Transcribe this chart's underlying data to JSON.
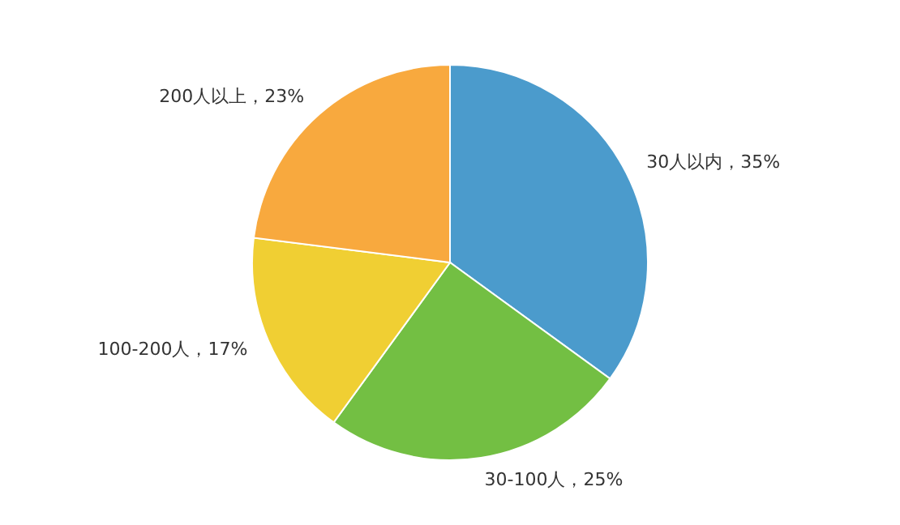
{
  "chart_data": {
    "type": "pie",
    "categories": [
      "30人以内",
      "30-100人",
      "100-200人",
      "200人以上"
    ],
    "values": [
      35,
      25,
      17,
      23
    ],
    "colors": [
      "#4b9bcc",
      "#73bf43",
      "#f0cf33",
      "#f8a93e"
    ],
    "value_labels": [
      "35%",
      "25%",
      "17%",
      "23%"
    ]
  }
}
